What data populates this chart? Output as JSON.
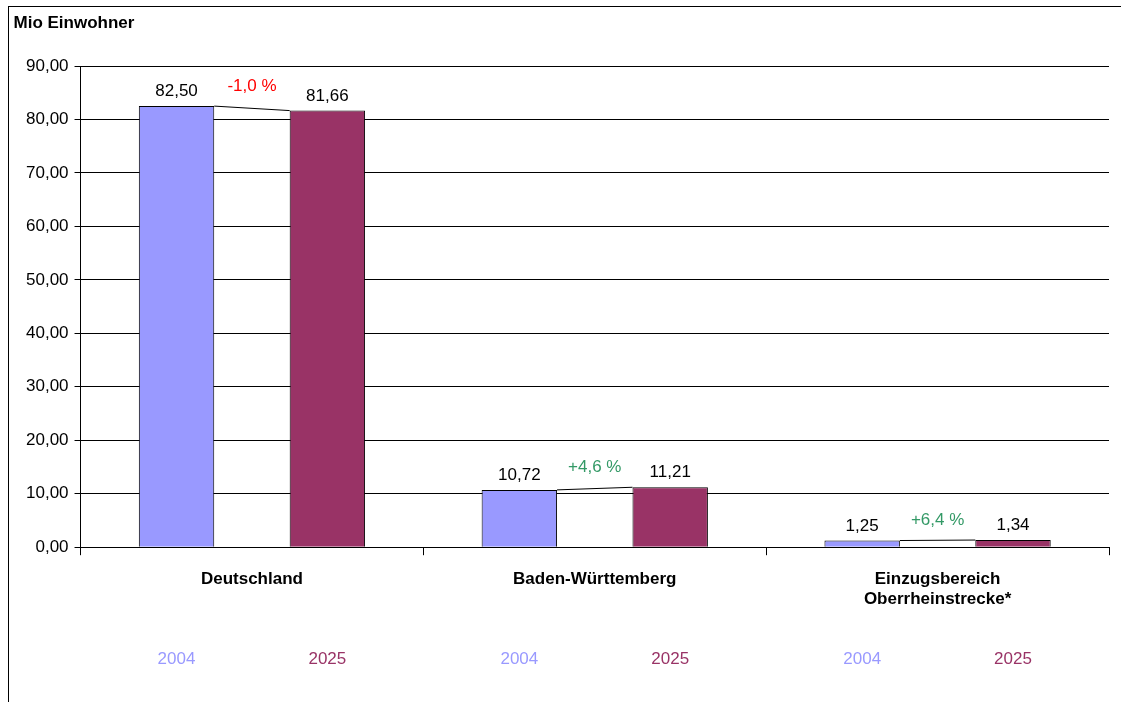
{
  "chart_data": {
    "type": "bar",
    "ylabel": "Mio Einwohner",
    "categories": [
      "Deutschland",
      "Baden-Württemberg",
      "Einzugsbereich\nOberrheinstrecke*"
    ],
    "series": [
      {
        "name": "2004",
        "color": "#9999ff",
        "values": [
          82.5,
          10.72,
          1.25
        ],
        "value_labels": [
          "82,50",
          "10,72",
          "1,25"
        ]
      },
      {
        "name": "2025",
        "color": "#993366",
        "values": [
          81.66,
          11.21,
          1.34
        ],
        "value_labels": [
          "81,66",
          "11,21",
          "1,34"
        ]
      }
    ],
    "ylim": [
      0,
      90
    ],
    "yticks": [
      {
        "value": 0,
        "label": "0,00"
      },
      {
        "value": 10,
        "label": "10,00"
      },
      {
        "value": 20,
        "label": "20,00"
      },
      {
        "value": 30,
        "label": "30,00"
      },
      {
        "value": 40,
        "label": "40,00"
      },
      {
        "value": 50,
        "label": "50,00"
      },
      {
        "value": 60,
        "label": "60,00"
      },
      {
        "value": 70,
        "label": "70,00"
      },
      {
        "value": 80,
        "label": "80,00"
      },
      {
        "value": 90,
        "label": "90,00"
      }
    ],
    "grid": "y",
    "legend": false,
    "annotations": [
      "-1,0 %",
      "+4,6 %",
      "+6,4 %"
    ]
  }
}
